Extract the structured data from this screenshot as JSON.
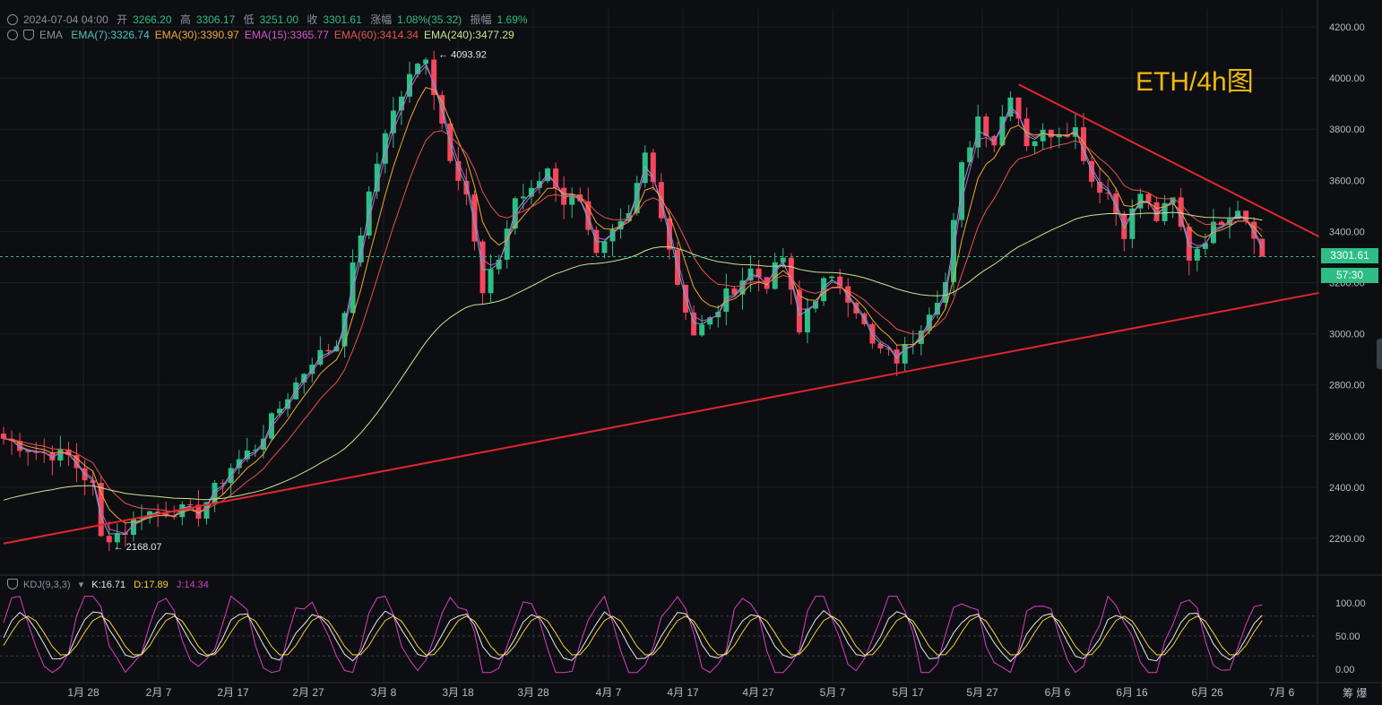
{
  "header": {
    "datetime": "2024-07-04 04:00",
    "open_label": "开",
    "open": "3266.20",
    "high_label": "高",
    "high": "3306.17",
    "low_label": "低",
    "low": "3251.00",
    "close_label": "收",
    "close": "3301.61",
    "change_label": "涨幅",
    "change": "1.08%(35.32)",
    "amplitude_label": "振幅",
    "amplitude": "1.69%"
  },
  "indicator_row": {
    "name": "EMA",
    "items": [
      {
        "text": "EMA(7):3326.74",
        "color": "#4fc3b7"
      },
      {
        "text": "EMA(30):3390.97",
        "color": "#f0a830"
      },
      {
        "text": "EMA(15):3365.77",
        "color": "#d856c8"
      },
      {
        "text": "EMA(60):3414.34",
        "color": "#e6534e"
      },
      {
        "text": "EMA(240):3477.29",
        "color": "#c7e58c"
      }
    ]
  },
  "kdj_row": {
    "name": "KDJ(9,3,3)",
    "k": "K:16.71",
    "d": "D:17.89",
    "j": "J:14.34",
    "k_color": "#e8e8e8",
    "d_color": "#f0d43a",
    "j_color": "#d63fbf"
  },
  "annotation": "ETH/4h图",
  "last_price_tag": "3301.61",
  "countdown_tag": "57:30",
  "bottom_right_labels": [
    "筹",
    "爆"
  ],
  "colors": {
    "up": "#2ebd85",
    "down": "#f6465d",
    "trendline": "#e0262f",
    "accent": "#f0b90b"
  },
  "chart_data": {
    "type": "candlestick",
    "timeframe": "4h",
    "symbol": "ETH",
    "y_axis": {
      "ticks": [
        "4200.00",
        "4000.00",
        "3800.00",
        "3600.00",
        "3400.00",
        "3200.00",
        "3000.00",
        "2800.00",
        "2600.00",
        "2400.00",
        "2200.00"
      ],
      "range": [
        2050,
        4250
      ]
    },
    "x_axis": {
      "ticks": [
        "1月 28",
        "2月 7",
        "2月 17",
        "2月 27",
        "3月 8",
        "3月 18",
        "3月 28",
        "4月 7",
        "4月 17",
        "4月 27",
        "5月 7",
        "5月 17",
        "5月 27",
        "6月 6",
        "6月 16",
        "6月 26",
        "7月 6"
      ]
    },
    "price_path": [
      [
        0,
        2590
      ],
      [
        4,
        2540
      ],
      [
        8,
        2520
      ],
      [
        11,
        2400
      ],
      [
        12,
        2200
      ],
      [
        15,
        2230
      ],
      [
        17,
        2300
      ],
      [
        21,
        2310
      ],
      [
        24,
        2300
      ],
      [
        28,
        2480
      ],
      [
        31,
        2560
      ],
      [
        35,
        2760
      ],
      [
        38,
        2900
      ],
      [
        41,
        2960
      ],
      [
        44,
        3400
      ],
      [
        47,
        3800
      ],
      [
        50,
        4000
      ],
      [
        52,
        4094
      ],
      [
        53,
        3950
      ],
      [
        55,
        3700
      ],
      [
        57,
        3550
      ],
      [
        59,
        3150
      ],
      [
        61,
        3300
      ],
      [
        63,
        3530
      ],
      [
        65,
        3550
      ],
      [
        67,
        3650
      ],
      [
        69,
        3520
      ],
      [
        71,
        3540
      ],
      [
        73,
        3300
      ],
      [
        75,
        3380
      ],
      [
        77,
        3450
      ],
      [
        79,
        3700
      ],
      [
        81,
        3480
      ],
      [
        83,
        3200
      ],
      [
        85,
        3000
      ],
      [
        87,
        3050
      ],
      [
        89,
        3150
      ],
      [
        92,
        3250
      ],
      [
        94,
        3200
      ],
      [
        96,
        3300
      ],
      [
        98,
        3000
      ],
      [
        99,
        3100
      ],
      [
        101,
        3200
      ],
      [
        103,
        3200
      ],
      [
        105,
        3100
      ],
      [
        107,
        2950
      ],
      [
        110,
        2900
      ],
      [
        112,
        2980
      ],
      [
        114,
        3100
      ],
      [
        116,
        3200
      ],
      [
        118,
        3650
      ],
      [
        120,
        3850
      ],
      [
        122,
        3750
      ],
      [
        124,
        3950
      ],
      [
        126,
        3750
      ],
      [
        128,
        3780
      ],
      [
        130,
        3800
      ],
      [
        132,
        3800
      ],
      [
        134,
        3600
      ],
      [
        136,
        3550
      ],
      [
        138,
        3400
      ],
      [
        140,
        3550
      ],
      [
        142,
        3450
      ],
      [
        144,
        3520
      ],
      [
        146,
        3300
      ],
      [
        148,
        3380
      ],
      [
        150,
        3450
      ],
      [
        152,
        3500
      ],
      [
        154,
        3400
      ],
      [
        155,
        3280
      ]
    ],
    "total_bars": 156,
    "ema_series": [
      {
        "name": "EMA(7)",
        "period": 7,
        "color": "#4fc3b7"
      },
      {
        "name": "EMA(15)",
        "period": 15,
        "color": "#d856c8"
      },
      {
        "name": "EMA(30)",
        "period": 30,
        "color": "#f0a830"
      },
      {
        "name": "EMA(60)",
        "period": 60,
        "color": "#e6534e"
      },
      {
        "name": "EMA(240)",
        "period": 240,
        "color": "#c7e58c"
      }
    ],
    "annotations": [
      {
        "label": "4093.92",
        "value": 4093.92,
        "at_bar": 52
      },
      {
        "label": "2168.07",
        "value": 2168.07,
        "at_bar": 12
      }
    ],
    "trendlines": [
      {
        "from": [
          0,
          2180
        ],
        "to": [
          162,
          3160
        ]
      },
      {
        "from": [
          125,
          3975
        ],
        "to": [
          162,
          3380
        ]
      }
    ],
    "last_price": 3301.61,
    "kdj": {
      "y_axis": {
        "ticks": [
          "100.00",
          "50.00",
          "0.00"
        ],
        "range": [
          -10,
          120
        ]
      },
      "levels": [
        80,
        50,
        20
      ],
      "cycle_bars": 9
    }
  }
}
